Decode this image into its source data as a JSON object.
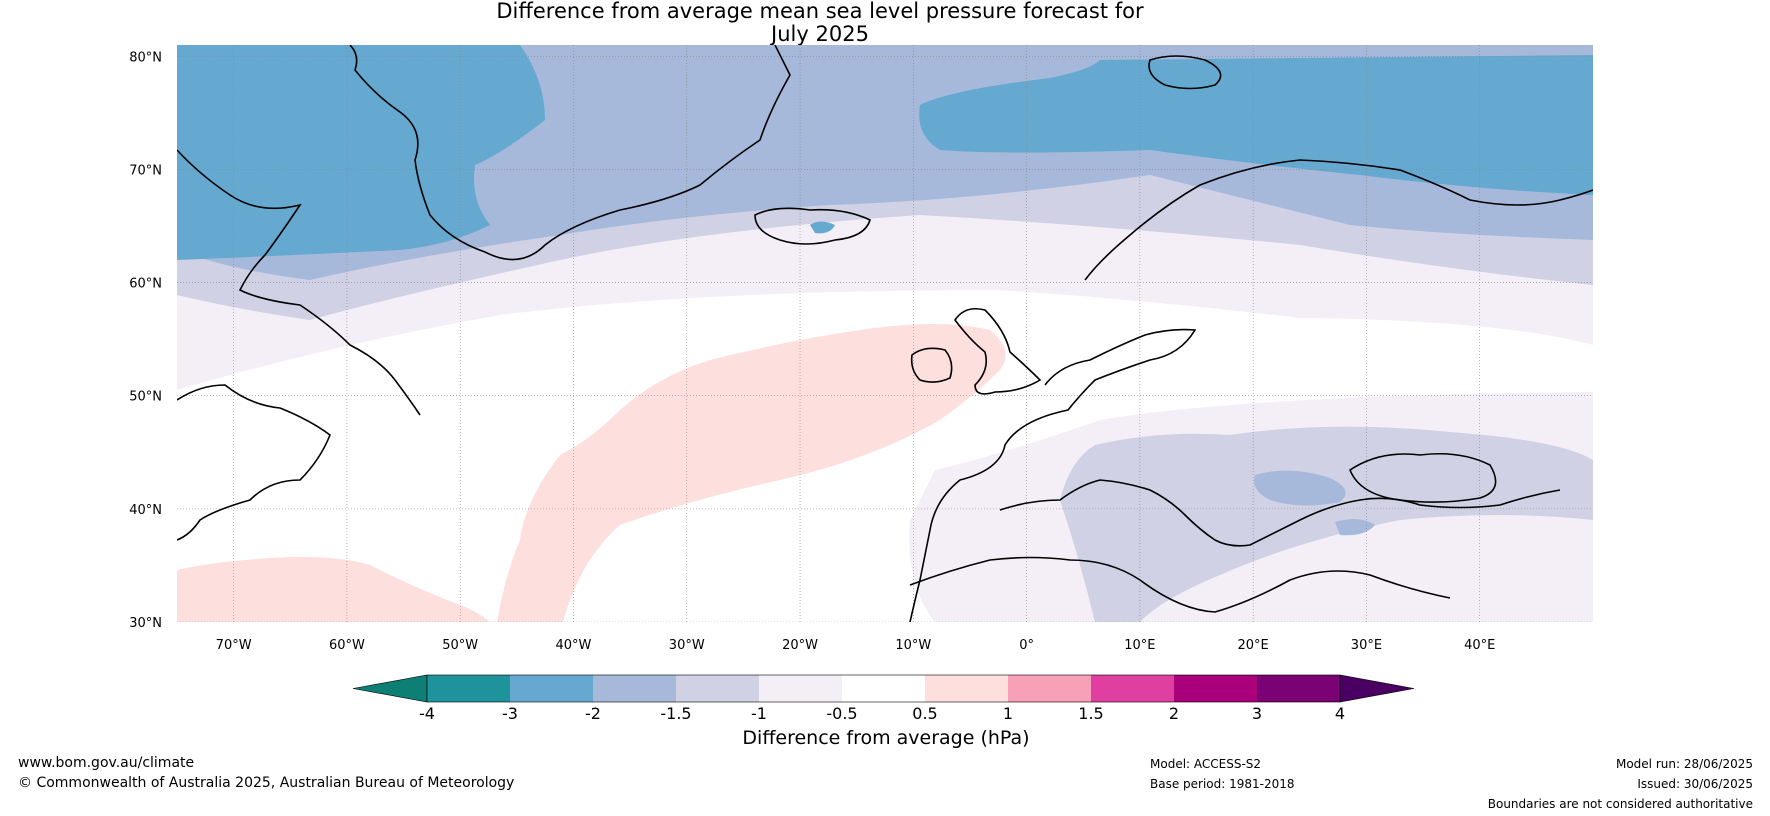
{
  "title": {
    "line1": "Difference from average mean sea level pressure forecast for",
    "line2": "July 2025"
  },
  "map": {
    "lon_range": [
      -75,
      50
    ],
    "lat_range": [
      30,
      81
    ],
    "lat_ticks": [
      30,
      40,
      50,
      60,
      70,
      80
    ],
    "lat_labels": [
      "30°N",
      "40°N",
      "50°N",
      "60°N",
      "70°N",
      "80°N"
    ],
    "lon_ticks": [
      -70,
      -60,
      -50,
      -40,
      -30,
      -20,
      -10,
      0,
      10,
      20,
      30,
      40
    ],
    "lon_labels": [
      "70°W",
      "60°W",
      "50°W",
      "40°W",
      "30°W",
      "20°W",
      "10°W",
      "0°",
      "10°E",
      "20°E",
      "30°E",
      "40°E"
    ],
    "grid": true,
    "colors": {
      "n4": "#0e7f74",
      "n3": "#1e939c",
      "n2": "#65a8d0",
      "n15": "#a6b9db",
      "n1": "#d0d1e5",
      "n05": "#f4eef6",
      "zero": "#ffffff",
      "p05": "#fde0de",
      "p1": "#f8a0b6",
      "p15": "#de3fa1",
      "p2": "#aa007c",
      "p3": "#7b0275",
      "p4": "#490062"
    }
  },
  "colorbar": {
    "ticks": [
      "-4",
      "-3",
      "-2",
      "-1.5",
      "-1",
      "-0.5",
      "0.5",
      "1",
      "1.5",
      "2",
      "3",
      "4"
    ],
    "segments": [
      "#0e7f74",
      "#1e939c",
      "#65a8d0",
      "#a6b9db",
      "#d0d1e5",
      "#f4eef6",
      "#ffffff",
      "#fde0de",
      "#f8a0b6",
      "#de3fa1",
      "#aa007c",
      "#7b0275",
      "#490062"
    ],
    "label": "Difference from average (hPa)"
  },
  "footer": {
    "website": "www.bom.gov.au/climate",
    "copyright": "© Commonwealth of Australia 2025, Australian Bureau of Meteorology",
    "model": "Model: ACCESS-S2",
    "base_period": "Base period: 1981-2018",
    "model_run": "Model run: 28/06/2025",
    "issued": "Issued: 30/06/2025",
    "disclaimer": "Boundaries are not considered authoritative"
  }
}
